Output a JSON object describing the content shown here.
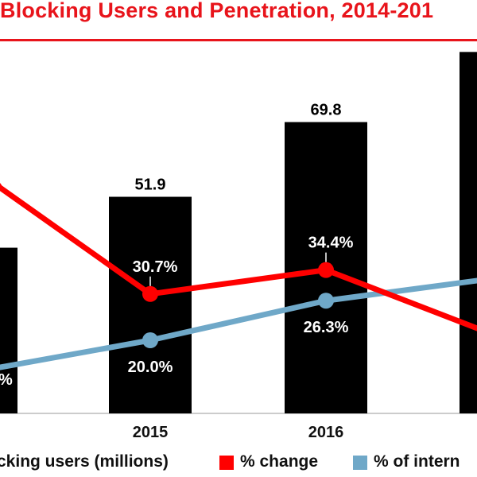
{
  "header": {
    "title": "Blocking Users and Penetration, 2014-201"
  },
  "legend": {
    "bars_label": "cking users (millions)",
    "change_label": "% change",
    "penetration_label": "% of intern"
  },
  "colors": {
    "title": "#e8141b",
    "bars": "#000000",
    "change_line": "#ff0000",
    "penetration_line": "#6fa8c8",
    "label_on_bar": "#ffffff",
    "label_above_bar": "#000000"
  },
  "chart_data": {
    "type": "bar",
    "title": "Blocking Users and Penetration, 2014-201",
    "categories": [
      "",
      "2015",
      "2016",
      ""
    ],
    "ylim": [
      0,
      100
    ],
    "series": [
      {
        "name": "cking users (millions)",
        "type": "bar",
        "values": [
          39.7,
          51.9,
          69.8,
          86.6
        ],
        "labels": [
          "",
          "51.9",
          "69.8",
          ""
        ]
      },
      {
        "name": "% change",
        "type": "line",
        "values": [
          null,
          30.7,
          34.4,
          24.0
        ],
        "labels": [
          "",
          "30.7%",
          "34.4%",
          ""
        ]
      },
      {
        "name": "% of intern",
        "type": "line",
        "values": [
          15.0,
          20.0,
          26.3,
          30.0
        ],
        "labels": [
          "%",
          "20.0%",
          "26.3%",
          ""
        ]
      }
    ]
  }
}
